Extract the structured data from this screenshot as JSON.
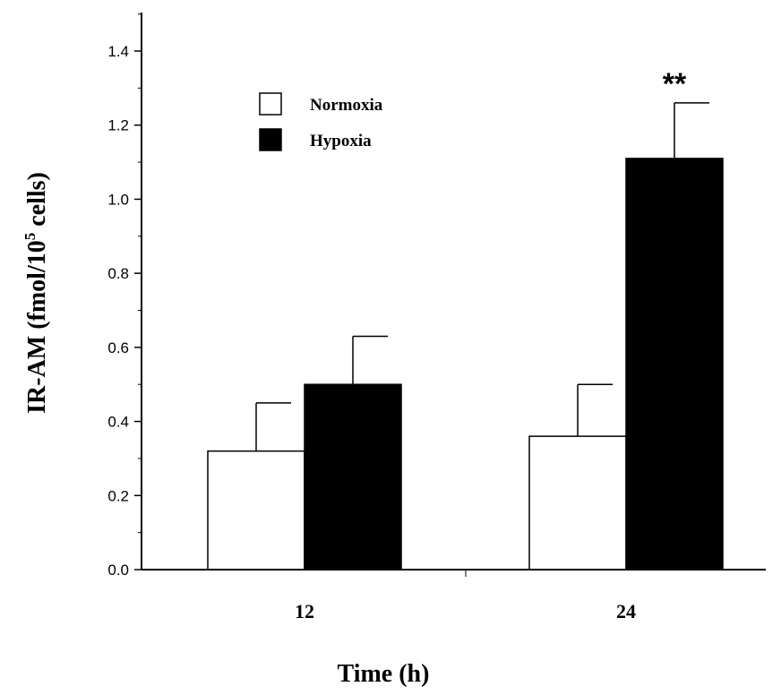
{
  "chart_data": {
    "type": "bar",
    "title": "",
    "xlabel": "Time (h)",
    "ylabel": "IR-AM (fmol/10",
    "ylabel_sup": "5",
    "ylabel_end": " cells)",
    "categories": [
      "12",
      "24"
    ],
    "series": [
      {
        "name": "Normoxia",
        "values": [
          0.32,
          0.36
        ],
        "errors": [
          0.13,
          0.14
        ],
        "color": "#ffffff"
      },
      {
        "name": "Hypoxia",
        "values": [
          0.5,
          1.11
        ],
        "errors": [
          0.13,
          0.15
        ],
        "color": "#000000"
      }
    ],
    "ylim": [
      0,
      1.5
    ],
    "yticks": [
      "0.0",
      "0.2",
      "0.4",
      "0.6",
      "0.8",
      "1.0",
      "1.2",
      "1.4"
    ],
    "legend_position": "top-left",
    "annotations": [
      {
        "text": "**",
        "category": "24",
        "series": "Hypoxia"
      }
    ],
    "grid": false
  }
}
